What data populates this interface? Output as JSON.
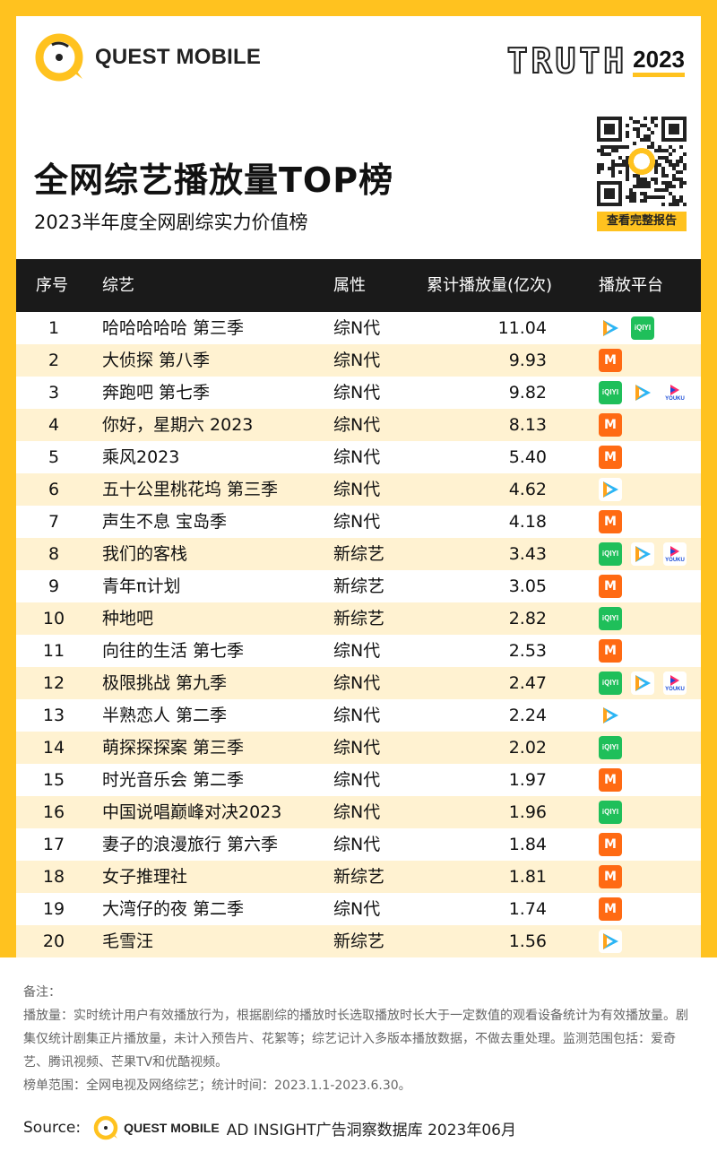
{
  "header": {
    "brand": "QUEST MOBILE",
    "truth_word": "TRUTH",
    "truth_year": "2023",
    "title": "全网综艺播放量TOP榜",
    "subtitle": "2023半年度全网剧综实力价值榜",
    "qr_button": "查看完整报告"
  },
  "colors": {
    "accent": "#ffc21f",
    "header_bg": "#1a1a1a",
    "alt_row": "#fff2d1"
  },
  "table": {
    "columns": [
      "序号",
      "综艺",
      "属性",
      "累计播放量(亿次)",
      "播放平台"
    ],
    "rows": [
      {
        "rank": "1",
        "name": "哈哈哈哈哈 第三季",
        "attr": "综N代",
        "value": "11.04",
        "platforms": [
          "tencent-video-icon",
          "iqiyi-icon"
        ]
      },
      {
        "rank": "2",
        "name": "大侦探 第八季",
        "attr": "综N代",
        "value": "9.93",
        "platforms": [
          "mango-tv-icon"
        ]
      },
      {
        "rank": "3",
        "name": "奔跑吧 第七季",
        "attr": "综N代",
        "value": "9.82",
        "platforms": [
          "iqiyi-icon",
          "tencent-video-icon",
          "youku-icon"
        ]
      },
      {
        "rank": "4",
        "name": "你好，星期六 2023",
        "attr": "综N代",
        "value": "8.13",
        "platforms": [
          "mango-tv-icon"
        ]
      },
      {
        "rank": "5",
        "name": "乘风2023",
        "attr": "综N代",
        "value": "5.40",
        "platforms": [
          "mango-tv-icon"
        ]
      },
      {
        "rank": "6",
        "name": "五十公里桃花坞 第三季",
        "attr": "综N代",
        "value": "4.62",
        "platforms": [
          "tencent-video-icon"
        ]
      },
      {
        "rank": "7",
        "name": "声生不息 宝岛季",
        "attr": "综N代",
        "value": "4.18",
        "platforms": [
          "mango-tv-icon"
        ]
      },
      {
        "rank": "8",
        "name": "我们的客栈",
        "attr": "新综艺",
        "value": "3.43",
        "platforms": [
          "iqiyi-icon",
          "tencent-video-icon",
          "youku-icon"
        ]
      },
      {
        "rank": "9",
        "name": "青年π计划",
        "attr": "新综艺",
        "value": "3.05",
        "platforms": [
          "mango-tv-icon"
        ]
      },
      {
        "rank": "10",
        "name": "种地吧",
        "attr": "新综艺",
        "value": "2.82",
        "platforms": [
          "iqiyi-icon"
        ]
      },
      {
        "rank": "11",
        "name": "向往的生活 第七季",
        "attr": "综N代",
        "value": "2.53",
        "platforms": [
          "mango-tv-icon"
        ]
      },
      {
        "rank": "12",
        "name": "极限挑战 第九季",
        "attr": "综N代",
        "value": "2.47",
        "platforms": [
          "iqiyi-icon",
          "tencent-video-icon",
          "youku-icon"
        ]
      },
      {
        "rank": "13",
        "name": "半熟恋人 第二季",
        "attr": "综N代",
        "value": "2.24",
        "platforms": [
          "tencent-video-icon"
        ]
      },
      {
        "rank": "14",
        "name": "萌探探探案 第三季",
        "attr": "综N代",
        "value": "2.02",
        "platforms": [
          "iqiyi-icon"
        ]
      },
      {
        "rank": "15",
        "name": "时光音乐会 第二季",
        "attr": "综N代",
        "value": "1.97",
        "platforms": [
          "mango-tv-icon"
        ]
      },
      {
        "rank": "16",
        "name": "中国说唱巅峰对决2023",
        "attr": "综N代",
        "value": "1.96",
        "platforms": [
          "iqiyi-icon"
        ]
      },
      {
        "rank": "17",
        "name": "妻子的浪漫旅行 第六季",
        "attr": "综N代",
        "value": "1.84",
        "platforms": [
          "mango-tv-icon"
        ]
      },
      {
        "rank": "18",
        "name": "女子推理社",
        "attr": "新综艺",
        "value": "1.81",
        "platforms": [
          "mango-tv-icon"
        ]
      },
      {
        "rank": "19",
        "name": "大湾仔的夜 第二季",
        "attr": "综N代",
        "value": "1.74",
        "platforms": [
          "mango-tv-icon"
        ]
      },
      {
        "rank": "20",
        "name": "毛雪汪",
        "attr": "新综艺",
        "value": "1.56",
        "platforms": [
          "tencent-video-icon"
        ]
      }
    ]
  },
  "platform_labels": {
    "iqiyi": "iQIYI",
    "mango": "M",
    "youku": "YOUKU"
  },
  "notes": {
    "heading": "备注：",
    "line1": "播放量：实时统计用户有效播放行为，根据剧综的播放时长选取播放时长大于一定数值的观看设备统计为有效播放量。剧集仅统计剧集正片播放量，未计入预告片、花絮等；综艺记计入多版本播放数据，不做去重处理。监测范围包括：爱奇艺、腾讯视频、芒果TV和优酷视频。",
    "line2": "榜单范围：全网电视及网络综艺；统计时间：2023.1.1-2023.6.30。"
  },
  "source": {
    "label": "Source:",
    "brand": "QUEST MOBILE",
    "text": "AD INSIGHT广告洞察数据库 2023年06月"
  }
}
